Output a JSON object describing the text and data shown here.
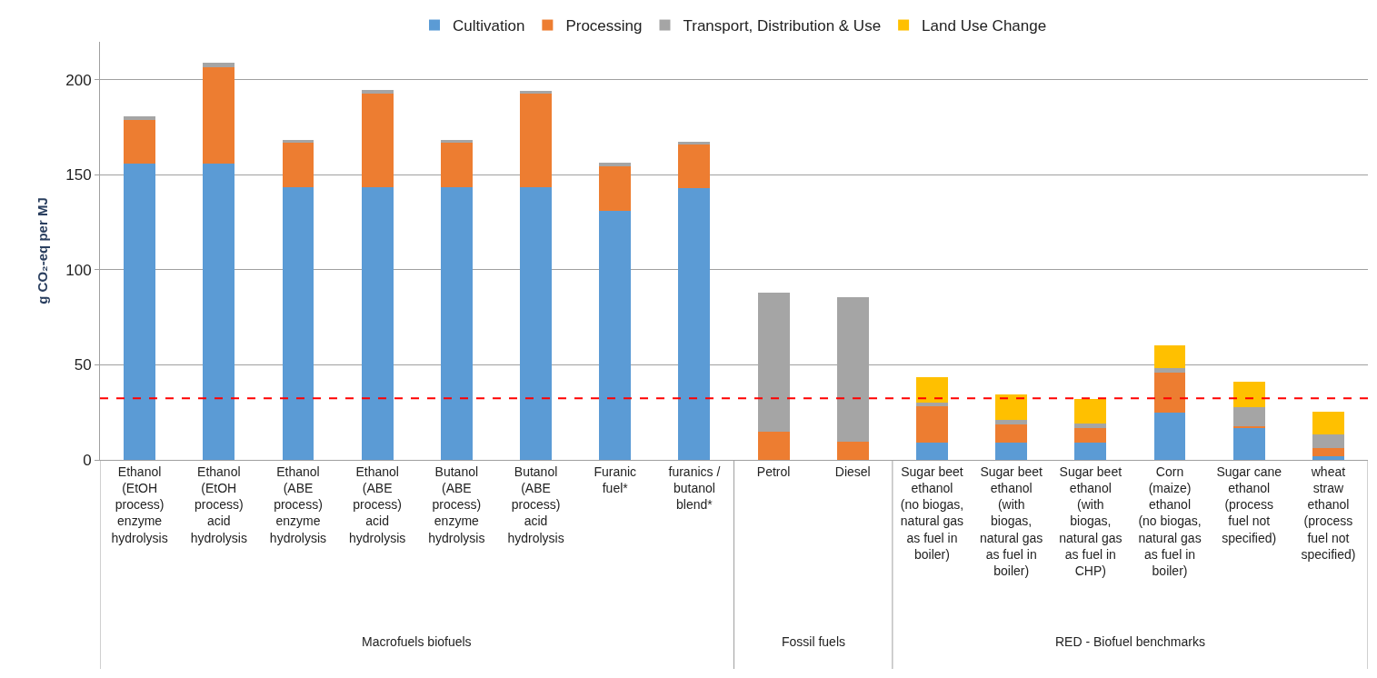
{
  "chart_data": {
    "type": "bar",
    "stacked": true,
    "ylabel": "g CO₂-eq per MJ",
    "categories": [
      "Ethanol\n(EtOH\nprocess)\nenzyme\nhydrolysis",
      "Ethanol\n(EtOH\nprocess)\nacid\nhydrolysis",
      "Ethanol\n(ABE\nprocess)\nenzyme\nhydrolysis",
      "Ethanol\n(ABE\nprocess)\nacid\nhydrolysis",
      "Butanol\n(ABE\nprocess)\nenzyme\nhydrolysis",
      "Butanol\n(ABE\nprocess)\nacid\nhydrolysis",
      "Furanic\nfuel*",
      "furanics /\nbutanol\nblend*",
      "Petrol",
      "Diesel",
      "Sugar beet\nethanol\n(no biogas,\nnatural gas\nas fuel in\nboiler)",
      "Sugar beet\nethanol\n(with\nbiogas,\nnatural gas\nas fuel in\nboiler)",
      "Sugar beet\nethanol\n(with\nbiogas,\nnatural gas\nas fuel in\nCHP)",
      "Corn\n(maize)\nethanol\n(no biogas,\nnatural gas\nas fuel in\nboiler)",
      "Sugar cane\nethanol\n(process\nfuel not\nspecified)",
      "wheat\nstraw\nethanol\n(process\nfuel not\nspecified)"
    ],
    "series": [
      {
        "name": "Cultivation",
        "color": "#5b9bd5",
        "values": [
          156,
          156,
          143.6,
          143.6,
          143.6,
          143.6,
          130.9,
          142.8,
          null,
          null,
          9.2,
          9.2,
          9.2,
          24.8,
          16.7,
          1.8
        ]
      },
      {
        "name": "Processing",
        "color": "#ed7d31",
        "values": [
          22.7,
          50.7,
          23.1,
          49.1,
          23.1,
          49.1,
          23.6,
          23.2,
          14.7,
          9.7,
          19.0,
          9.6,
          7.5,
          21.2,
          1.1,
          4.5
        ]
      },
      {
        "name": "Transport, Distribution & Use",
        "color": "#a5a5a5",
        "values": [
          2.3,
          2.3,
          1.8,
          1.9,
          1.5,
          1.5,
          1.8,
          1.5,
          73.3,
          75.8,
          2.1,
          2.2,
          2.4,
          2.4,
          9.9,
          7.1
        ]
      },
      {
        "name": "Land Use Change",
        "color": "#ffc000",
        "values": [
          null,
          null,
          null,
          null,
          null,
          null,
          null,
          null,
          null,
          null,
          13.1,
          13.3,
          13.1,
          12.0,
          13.2,
          11.8
        ]
      }
    ],
    "ylim": [
      0,
      220
    ],
    "yticks": [
      0,
      50,
      100,
      150,
      200
    ],
    "grid": "y",
    "legend": "top",
    "ref_lines": [
      {
        "axis": "y",
        "value": 32.4,
        "color": "#ff0000",
        "line_style": "dashed"
      }
    ],
    "annotations": [
      "Macrofuels biofuels",
      "Fossil fuels",
      "RED - Biofuel benchmarks"
    ]
  }
}
